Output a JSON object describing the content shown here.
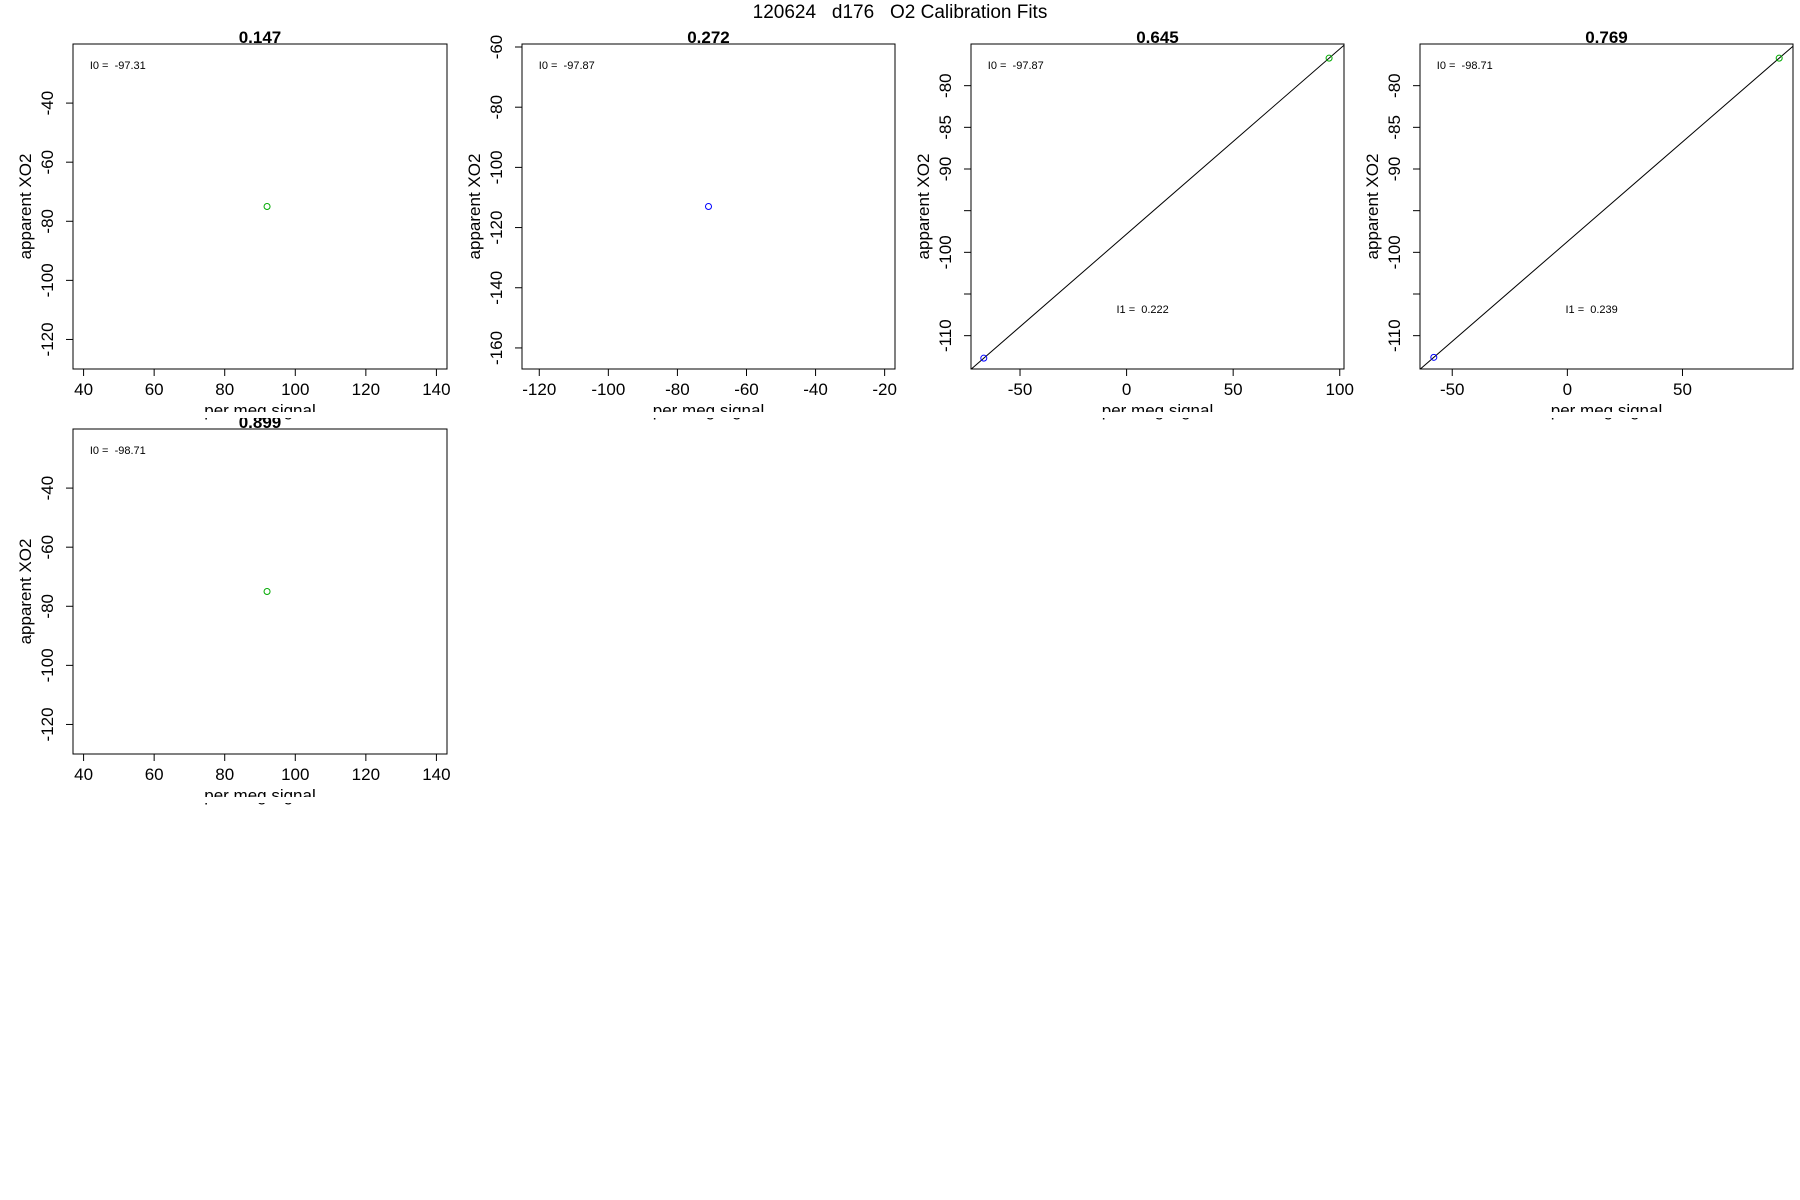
{
  "title": "120624   d176   O2 Calibration Fits",
  "colors": {
    "frame": "#000000",
    "green": "#00aa00",
    "blue": "#0000ff",
    "fitline": "#000000"
  },
  "chart_data": [
    {
      "type": "scatter",
      "title": "0.147",
      "xlabel": "per meg signal",
      "ylabel": "apparent XO2",
      "xlim": [
        37,
        143
      ],
      "ylim": [
        -130,
        -20
      ],
      "xticks": [
        "40",
        "60",
        "80",
        "100",
        "120",
        "140"
      ],
      "xtick_values": [
        40,
        60,
        80,
        100,
        120,
        140
      ],
      "yticks": [
        "-40",
        "-60",
        "-80",
        "-100",
        "-120"
      ],
      "ytick_values": [
        -40,
        -60,
        -80,
        -100,
        -120
      ],
      "annotations": [
        {
          "text": "I0 =  -97.31"
        }
      ],
      "points": [
        {
          "x": 92,
          "y": -75,
          "color": "green"
        }
      ],
      "fit_line": null
    },
    {
      "type": "scatter",
      "title": "0.272",
      "xlabel": "per meg signal",
      "ylabel": "apparent XO2",
      "xlim": [
        -125,
        -17
      ],
      "ylim": [
        -167,
        -59
      ],
      "xticks": [
        "-120",
        "-100",
        "-80",
        "-60",
        "-40",
        "-20"
      ],
      "xtick_values": [
        -120,
        -100,
        -80,
        -60,
        -40,
        -20
      ],
      "yticks": [
        "-60",
        "-80",
        "-100",
        "-120",
        "-140",
        "-160"
      ],
      "ytick_values": [
        -60,
        -80,
        -100,
        -120,
        -140,
        -160
      ],
      "annotations": [
        {
          "text": "I0 =  -97.87"
        }
      ],
      "points": [
        {
          "x": -71,
          "y": -113,
          "color": "blue"
        }
      ],
      "fit_line": null
    },
    {
      "type": "scatter",
      "title": "0.645",
      "xlabel": "per meg signal",
      "ylabel": "apparent XO2",
      "xlim": [
        -73,
        102
      ],
      "ylim": [
        -114,
        -75
      ],
      "xticks": [
        "-50",
        "0",
        "50",
        "100"
      ],
      "xtick_values": [
        -50,
        0,
        50,
        100
      ],
      "yticks": [
        "-80",
        "-85",
        "-90",
        "",
        "-100",
        "",
        "-110"
      ],
      "ytick_values": [
        -80,
        -85,
        -90,
        -95,
        -100,
        -105,
        -110
      ],
      "annotations": [
        {
          "text": "I0 =  -97.87"
        },
        {
          "text": "I1 =  0.222"
        }
      ],
      "points": [
        {
          "x": -67,
          "y": -112.7,
          "color": "blue"
        },
        {
          "x": 95,
          "y": -76.7,
          "color": "green"
        }
      ],
      "fit_line": {
        "intercept": -97.87,
        "slope": 0.222
      }
    },
    {
      "type": "scatter",
      "title": "0.769",
      "xlabel": "per meg signal",
      "ylabel": "apparent XO2",
      "xlim": [
        -64,
        98
      ],
      "ylim": [
        -114,
        -75
      ],
      "xticks": [
        "-50",
        "0",
        "50"
      ],
      "xtick_values": [
        -50,
        0,
        50
      ],
      "yticks": [
        "-80",
        "-85",
        "-90",
        "",
        "-100",
        "",
        "-110"
      ],
      "ytick_values": [
        -80,
        -85,
        -90,
        -95,
        -100,
        -105,
        -110
      ],
      "annotations": [
        {
          "text": "I0 =  -98.71"
        },
        {
          "text": "I1 =  0.239"
        }
      ],
      "points": [
        {
          "x": -58,
          "y": -112.6,
          "color": "blue"
        },
        {
          "x": 92,
          "y": -76.7,
          "color": "green"
        }
      ],
      "fit_line": {
        "intercept": -98.71,
        "slope": 0.239
      }
    },
    {
      "type": "scatter",
      "title": "0.899",
      "xlabel": "per meg signal",
      "ylabel": "apparent XO2",
      "xlim": [
        37,
        143
      ],
      "ylim": [
        -130,
        -20
      ],
      "xticks": [
        "40",
        "60",
        "80",
        "100",
        "120",
        "140"
      ],
      "xtick_values": [
        40,
        60,
        80,
        100,
        120,
        140
      ],
      "yticks": [
        "-40",
        "-60",
        "-80",
        "-100",
        "-120"
      ],
      "ytick_values": [
        -40,
        -60,
        -80,
        -100,
        -120
      ],
      "annotations": [
        {
          "text": "I0 =  -98.71"
        }
      ],
      "points": [
        {
          "x": 92,
          "y": -75,
          "color": "green"
        }
      ],
      "fit_line": null
    }
  ]
}
